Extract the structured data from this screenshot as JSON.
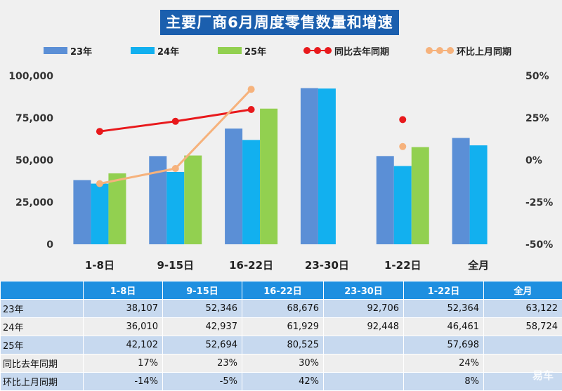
{
  "chart_data": {
    "type": "bar",
    "title": "主要厂商6月周度零售数量和增速",
    "categories": [
      "1-8日",
      "9-15日",
      "16-22日",
      "23-30日",
      "1-22日",
      "全月"
    ],
    "series": [
      {
        "name": "23年",
        "type": "bar",
        "axis": "left",
        "color": "#5b8fd6",
        "values": [
          38107,
          52346,
          68676,
          92706,
          52364,
          63122
        ]
      },
      {
        "name": "24年",
        "type": "bar",
        "axis": "left",
        "color": "#12b0ef",
        "values": [
          36010,
          42937,
          61929,
          92448,
          46461,
          58724
        ]
      },
      {
        "name": "25年",
        "type": "bar",
        "axis": "left",
        "color": "#92d050",
        "values": [
          42102,
          52694,
          80525,
          null,
          57698,
          null
        ]
      },
      {
        "name": "同比去年同期",
        "type": "line",
        "axis": "right",
        "color": "#e8191c",
        "values": [
          17,
          23,
          30,
          null,
          24,
          null
        ]
      },
      {
        "name": "环比上月同期",
        "type": "line",
        "axis": "right",
        "color": "#f6b27c",
        "values": [
          -14,
          -5,
          42,
          null,
          8,
          null
        ]
      }
    ],
    "y_left": {
      "range": [
        0,
        100000
      ],
      "ticks": [
        0,
        25000,
        50000,
        75000,
        100000
      ],
      "tick_labels": [
        "0",
        "25,000",
        "50,000",
        "75,000",
        "100,000"
      ]
    },
    "y_right": {
      "range": [
        -50,
        50
      ],
      "ticks": [
        -50,
        -25,
        0,
        25,
        50
      ],
      "tick_labels": [
        "-50%",
        "-25%",
        "0%",
        "25%",
        "50%"
      ]
    },
    "legend_position": "top",
    "grid": false
  },
  "table": {
    "header": [
      "",
      "1-8日",
      "9-15日",
      "16-22日",
      "23-30日",
      "1-22日",
      "全月"
    ],
    "rows": [
      {
        "label": "23年",
        "cells": [
          "38,107",
          "52,346",
          "68,676",
          "92,706",
          "52,364",
          "63,122"
        ]
      },
      {
        "label": "24年",
        "cells": [
          "36,010",
          "42,937",
          "61,929",
          "92,448",
          "46,461",
          "58,724"
        ]
      },
      {
        "label": "25年",
        "cells": [
          "42,102",
          "52,694",
          "80,525",
          "",
          "57,698",
          ""
        ]
      },
      {
        "label": "同比去年同期",
        "cells": [
          "17%",
          "23%",
          "30%",
          "",
          "24%",
          ""
        ]
      },
      {
        "label": "环比上月同期",
        "cells": [
          "-14%",
          "-5%",
          "42%",
          "",
          "8%",
          ""
        ]
      }
    ]
  },
  "watermark": "易车"
}
